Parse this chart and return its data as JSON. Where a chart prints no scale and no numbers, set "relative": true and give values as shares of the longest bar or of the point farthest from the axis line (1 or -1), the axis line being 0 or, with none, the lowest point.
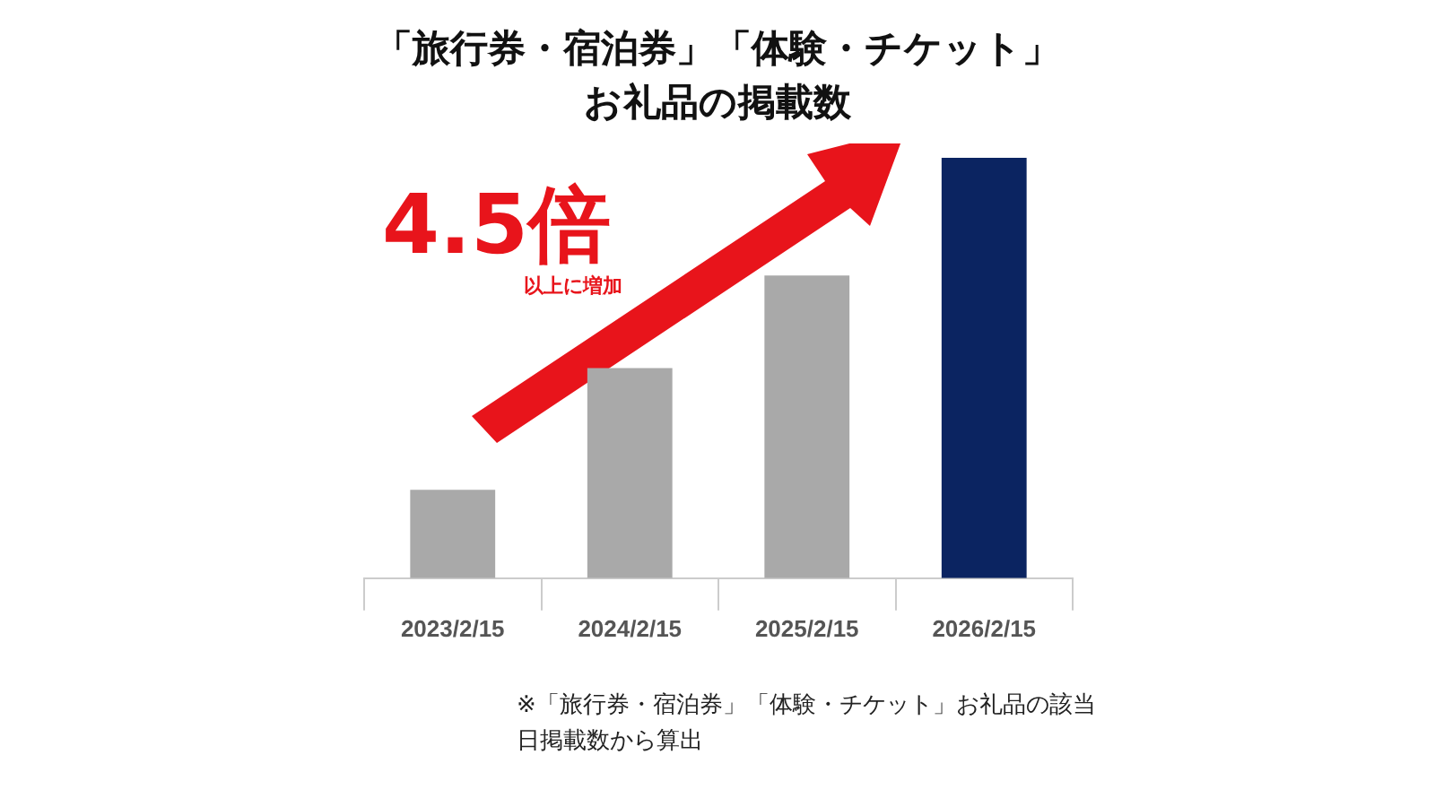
{
  "chart_data": {
    "type": "bar",
    "title": "「旅行券・宿泊券」「体験・チケット」お礼品の掲載数",
    "categories": [
      "2023/2/15",
      "2024/2/15",
      "2025/2/15",
      "2026/2/15"
    ],
    "values": [
      0.21,
      0.5,
      0.72,
      1
    ],
    "colors": [
      "#a9a9a9",
      "#a9a9a9",
      "#a9a9a9",
      "#0b2461"
    ],
    "relative": true,
    "annotations": [
      "4.5倍",
      "以上に増加",
      "※「旅行券・宿泊券」「体験・チケット」お礼品の該当日掲載数から算出"
    ]
  }
}
